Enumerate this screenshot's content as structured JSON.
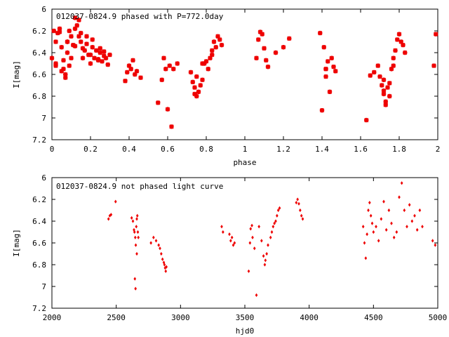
{
  "chart_data": [
    {
      "type": "scatter",
      "title": "012037-0824.9 phased with P=772.0day",
      "xlabel": "phase",
      "ylabel": "I[mag]",
      "xlim": [
        0,
        2
      ],
      "ylim": [
        6,
        7.2
      ],
      "y_inverted": true,
      "x_ticks": [
        "0",
        "0.2",
        "0.4",
        "0.6",
        "0.8",
        "1",
        "1.2",
        "1.4",
        "1.6",
        "1.8",
        "2"
      ],
      "y_ticks": [
        "6",
        "6.2",
        "6.4",
        "6.6",
        "6.8",
        "7",
        "7.2"
      ],
      "marker": "star",
      "color": "#ee0000",
      "grid": false,
      "series": [
        {
          "x": [
            0.0,
            0.01,
            0.02,
            0.02,
            0.03,
            0.04,
            0.05,
            0.06,
            0.06,
            0.07,
            0.08,
            0.08,
            0.09,
            0.1,
            0.1,
            0.11,
            0.12,
            0.12,
            0.13,
            0.14,
            0.14,
            0.15,
            0.16,
            0.17,
            0.18,
            0.19,
            0.2,
            0.21,
            0.22,
            0.23,
            0.24,
            0.25,
            0.26,
            0.27,
            0.28,
            0.29,
            0.3,
            0.02,
            0.05,
            0.07,
            0.09,
            0.12,
            0.15,
            0.18,
            0.21,
            0.24,
            0.27,
            0.04,
            0.08,
            0.16,
            0.2,
            0.25,
            0.38,
            0.39,
            0.4,
            0.41,
            0.42,
            0.43,
            0.44,
            0.46,
            0.55,
            0.57,
            0.58,
            0.59,
            0.6,
            0.61,
            0.62,
            0.63,
            0.65,
            0.72,
            0.73,
            0.74,
            0.74,
            0.75,
            0.76,
            0.77,
            0.78,
            0.79,
            0.8,
            0.81,
            0.82,
            0.83,
            0.84,
            0.85,
            0.86,
            0.87,
            0.88,
            0.83,
            0.78,
            0.75,
            1.06,
            1.07,
            1.08,
            1.09,
            1.1,
            1.11,
            1.12,
            1.16,
            1.2,
            1.23,
            1.39,
            1.41,
            1.42,
            1.42,
            1.43,
            1.44,
            1.45,
            1.46,
            1.47,
            1.42,
            1.4,
            1.63,
            1.65,
            1.67,
            1.69,
            1.7,
            1.71,
            1.72,
            1.72,
            1.73,
            1.73,
            1.74,
            1.75,
            1.75,
            1.76,
            1.77,
            1.78,
            1.79,
            1.8,
            1.81,
            1.82,
            1.83,
            1.72,
            1.77,
            1.98,
            1.99
          ],
          "y": [
            6.45,
            6.2,
            6.3,
            6.5,
            6.22,
            6.21,
            6.35,
            6.47,
            6.55,
            6.63,
            6.4,
            6.3,
            6.2,
            6.25,
            6.45,
            6.33,
            6.18,
            6.08,
            6.15,
            6.1,
            6.25,
            6.3,
            6.45,
            6.38,
            6.25,
            6.42,
            6.5,
            6.35,
            6.45,
            6.38,
            6.47,
            6.36,
            6.48,
            6.43,
            6.45,
            6.51,
            6.42,
            6.52,
            6.57,
            6.6,
            6.52,
            6.34,
            6.22,
            6.32,
            6.28,
            6.46,
            6.39,
            6.18,
            6.3,
            6.36,
            6.42,
            6.4,
            6.66,
            6.58,
            6.52,
            6.55,
            6.47,
            6.6,
            6.57,
            6.63,
            6.86,
            6.65,
            6.45,
            6.55,
            6.92,
            6.52,
            7.08,
            6.55,
            6.5,
            6.58,
            6.67,
            6.72,
            6.78,
            6.8,
            6.76,
            6.7,
            6.65,
            6.5,
            6.48,
            6.55,
            6.45,
            6.42,
            6.3,
            6.35,
            6.25,
            6.28,
            6.33,
            6.38,
            6.5,
            6.62,
            6.45,
            6.28,
            6.21,
            6.23,
            6.36,
            6.47,
            6.53,
            6.4,
            6.35,
            6.27,
            6.22,
            6.35,
            6.55,
            6.62,
            6.48,
            6.76,
            6.45,
            6.53,
            6.57,
            6.55,
            6.93,
            7.02,
            6.61,
            6.58,
            6.52,
            6.62,
            6.7,
            6.75,
            6.78,
            6.85,
            6.88,
            6.72,
            6.8,
            6.68,
            6.55,
            6.45,
            6.38,
            6.28,
            6.23,
            6.3,
            6.33,
            6.4,
            6.65,
            6.52,
            6.52,
            6.23
          ]
        }
      ]
    },
    {
      "type": "scatter",
      "title": "012037-0824.9 not phased light curve",
      "xlabel": "hjd0",
      "ylabel": "I[mag]",
      "xlim": [
        2000,
        5000
      ],
      "ylim": [
        6,
        7.2
      ],
      "y_inverted": true,
      "x_ticks": [
        "2000",
        "2500",
        "3000",
        "3500",
        "4000",
        "4500",
        "5000"
      ],
      "y_ticks": [
        "6",
        "6.2",
        "6.4",
        "6.6",
        "6.8",
        "7",
        "7.2"
      ],
      "marker": "diamond",
      "color": "#ee0000",
      "grid": false,
      "series": [
        {
          "x": [
            2440,
            2450,
            2460,
            2495,
            2620,
            2630,
            2638,
            2642,
            2648,
            2652,
            2656,
            2660,
            2664,
            2668,
            2672,
            2645,
            2650,
            2660,
            2770,
            2790,
            2810,
            2830,
            2840,
            2850,
            2860,
            2870,
            2875,
            2880,
            2885,
            2890,
            3320,
            3330,
            3380,
            3390,
            3400,
            3410,
            3420,
            3530,
            3545,
            3560,
            3575,
            3590,
            3610,
            3630,
            3645,
            3655,
            3660,
            3670,
            3680,
            3700,
            3710,
            3720,
            3730,
            3740,
            3750,
            3760,
            3770,
            3540,
            3555,
            3900,
            3910,
            3920,
            3930,
            3940,
            3950,
            4420,
            4430,
            4440,
            4450,
            4460,
            4470,
            4480,
            4490,
            4500,
            4520,
            4540,
            4560,
            4580,
            4600,
            4620,
            4640,
            4660,
            4680,
            4700,
            4720,
            4740,
            4760,
            4780,
            4800,
            4820,
            4840,
            4860,
            4880,
            4960,
            4980
          ],
          "y": [
            6.38,
            6.35,
            6.34,
            6.22,
            6.37,
            6.4,
            6.48,
            6.5,
            6.55,
            6.62,
            6.45,
            6.38,
            6.35,
            6.5,
            6.55,
            6.93,
            7.02,
            6.7,
            6.6,
            6.55,
            6.58,
            6.62,
            6.65,
            6.7,
            6.75,
            6.78,
            6.8,
            6.83,
            6.86,
            6.82,
            6.45,
            6.5,
            6.52,
            6.58,
            6.55,
            6.62,
            6.6,
            6.86,
            6.47,
            6.55,
            6.65,
            7.08,
            6.45,
            6.58,
            6.72,
            6.8,
            6.76,
            6.7,
            6.62,
            6.55,
            6.5,
            6.45,
            6.42,
            6.4,
            6.35,
            6.3,
            6.28,
            6.6,
            6.44,
            6.23,
            6.2,
            6.24,
            6.3,
            6.35,
            6.38,
            6.45,
            6.6,
            6.74,
            6.52,
            6.3,
            6.23,
            6.35,
            6.42,
            6.5,
            6.45,
            6.58,
            6.38,
            6.22,
            6.48,
            6.3,
            6.42,
            6.55,
            6.5,
            6.18,
            6.05,
            6.3,
            6.45,
            6.25,
            6.4,
            6.35,
            6.48,
            6.3,
            6.45,
            6.58,
            6.62
          ]
        }
      ]
    }
  ]
}
